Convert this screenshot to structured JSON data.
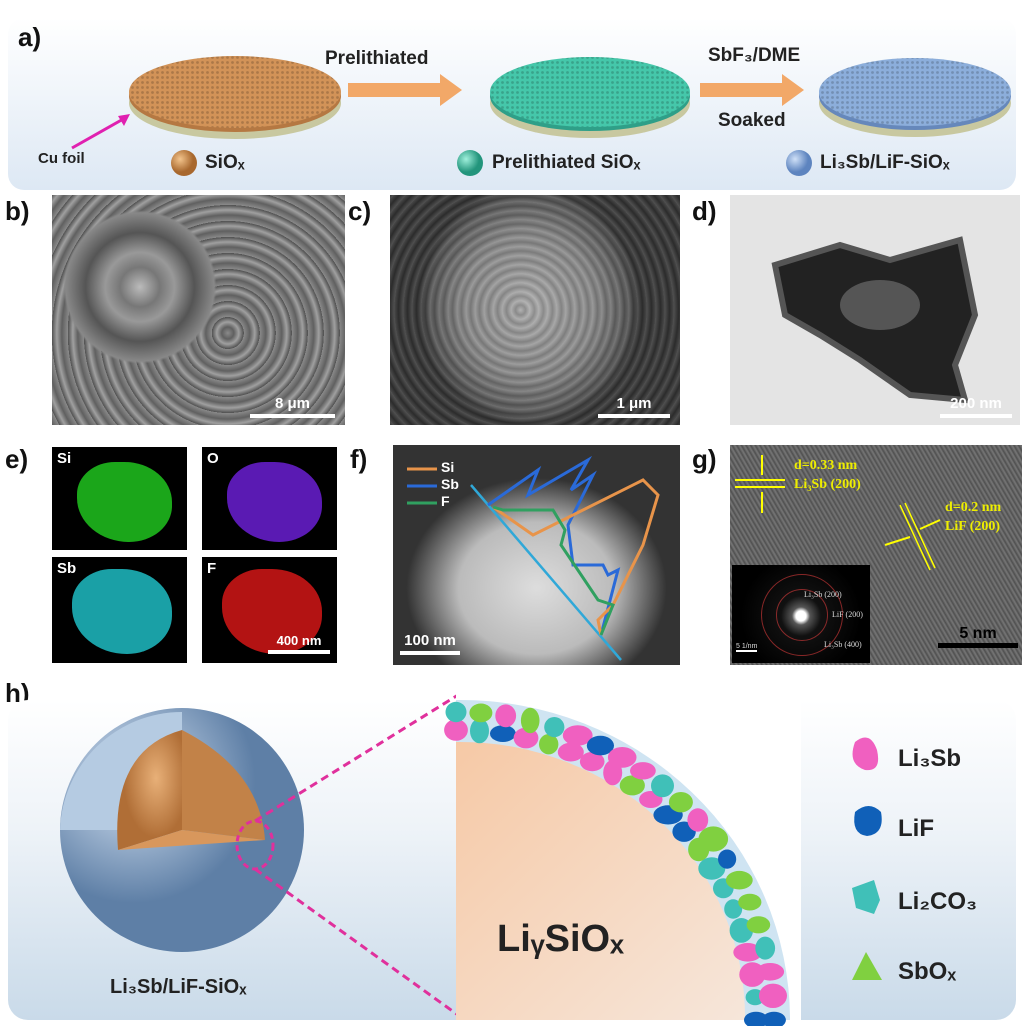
{
  "panel_a": {
    "label": "a)",
    "step1": "Prelithiated",
    "step2_top": "SbF₃/DME",
    "step2_bottom": "Soaked",
    "cu_foil": "Cu foil",
    "legend": [
      "SiOₓ",
      "Prelithiated SiOₓ",
      "Li₃Sb/LiF-SiOₓ"
    ],
    "colors": {
      "siox": "#c98a4e",
      "prelithiated": "#3dbfa3",
      "coated": "#7fa6d6",
      "arrow": "#f0a060",
      "cu_arrow": "#e020b0"
    }
  },
  "panel_b": {
    "label": "b)",
    "scale": "8 μm"
  },
  "panel_c": {
    "label": "c)",
    "scale": "1 μm"
  },
  "panel_d": {
    "label": "d)",
    "scale": "200 nm"
  },
  "panel_e": {
    "label": "e)",
    "maps": [
      {
        "element": "Si",
        "color": "#22d020"
      },
      {
        "element": "O",
        "color": "#7020e0"
      },
      {
        "element": "Sb",
        "color": "#20c8d0"
      },
      {
        "element": "F",
        "color": "#e01818"
      }
    ],
    "scale": "400 nm"
  },
  "panel_f": {
    "label": "f)",
    "legend": [
      "Si",
      "Sb",
      "F"
    ],
    "colors": [
      "#e8944a",
      "#2a6ad8",
      "#30a060"
    ],
    "scale": "100 nm"
  },
  "panel_g": {
    "label": "g)",
    "d1": "d=0.33 nm",
    "p1": "Li₃Sb (200)",
    "d2": "d=0.2 nm",
    "p2": "LiF (200)",
    "inset": [
      "Li₃Sb (200)",
      "LiF (200)",
      "Li₃Sb (400)"
    ],
    "inset_scale": "5 1/nm",
    "scale": "5 nm"
  },
  "panel_h": {
    "label": "h)",
    "sphere_label": "Li₃Sb/LiF-SiOₓ",
    "core_label": "LiᵧSiOₓ",
    "legend": [
      {
        "name": "Li₃Sb",
        "color": "#f060c0"
      },
      {
        "name": "LiF",
        "color": "#1060b8"
      },
      {
        "name": "Li₂CO₃",
        "color": "#40c0b8"
      },
      {
        "name": "SbOₓ",
        "color": "#80d040"
      }
    ]
  }
}
